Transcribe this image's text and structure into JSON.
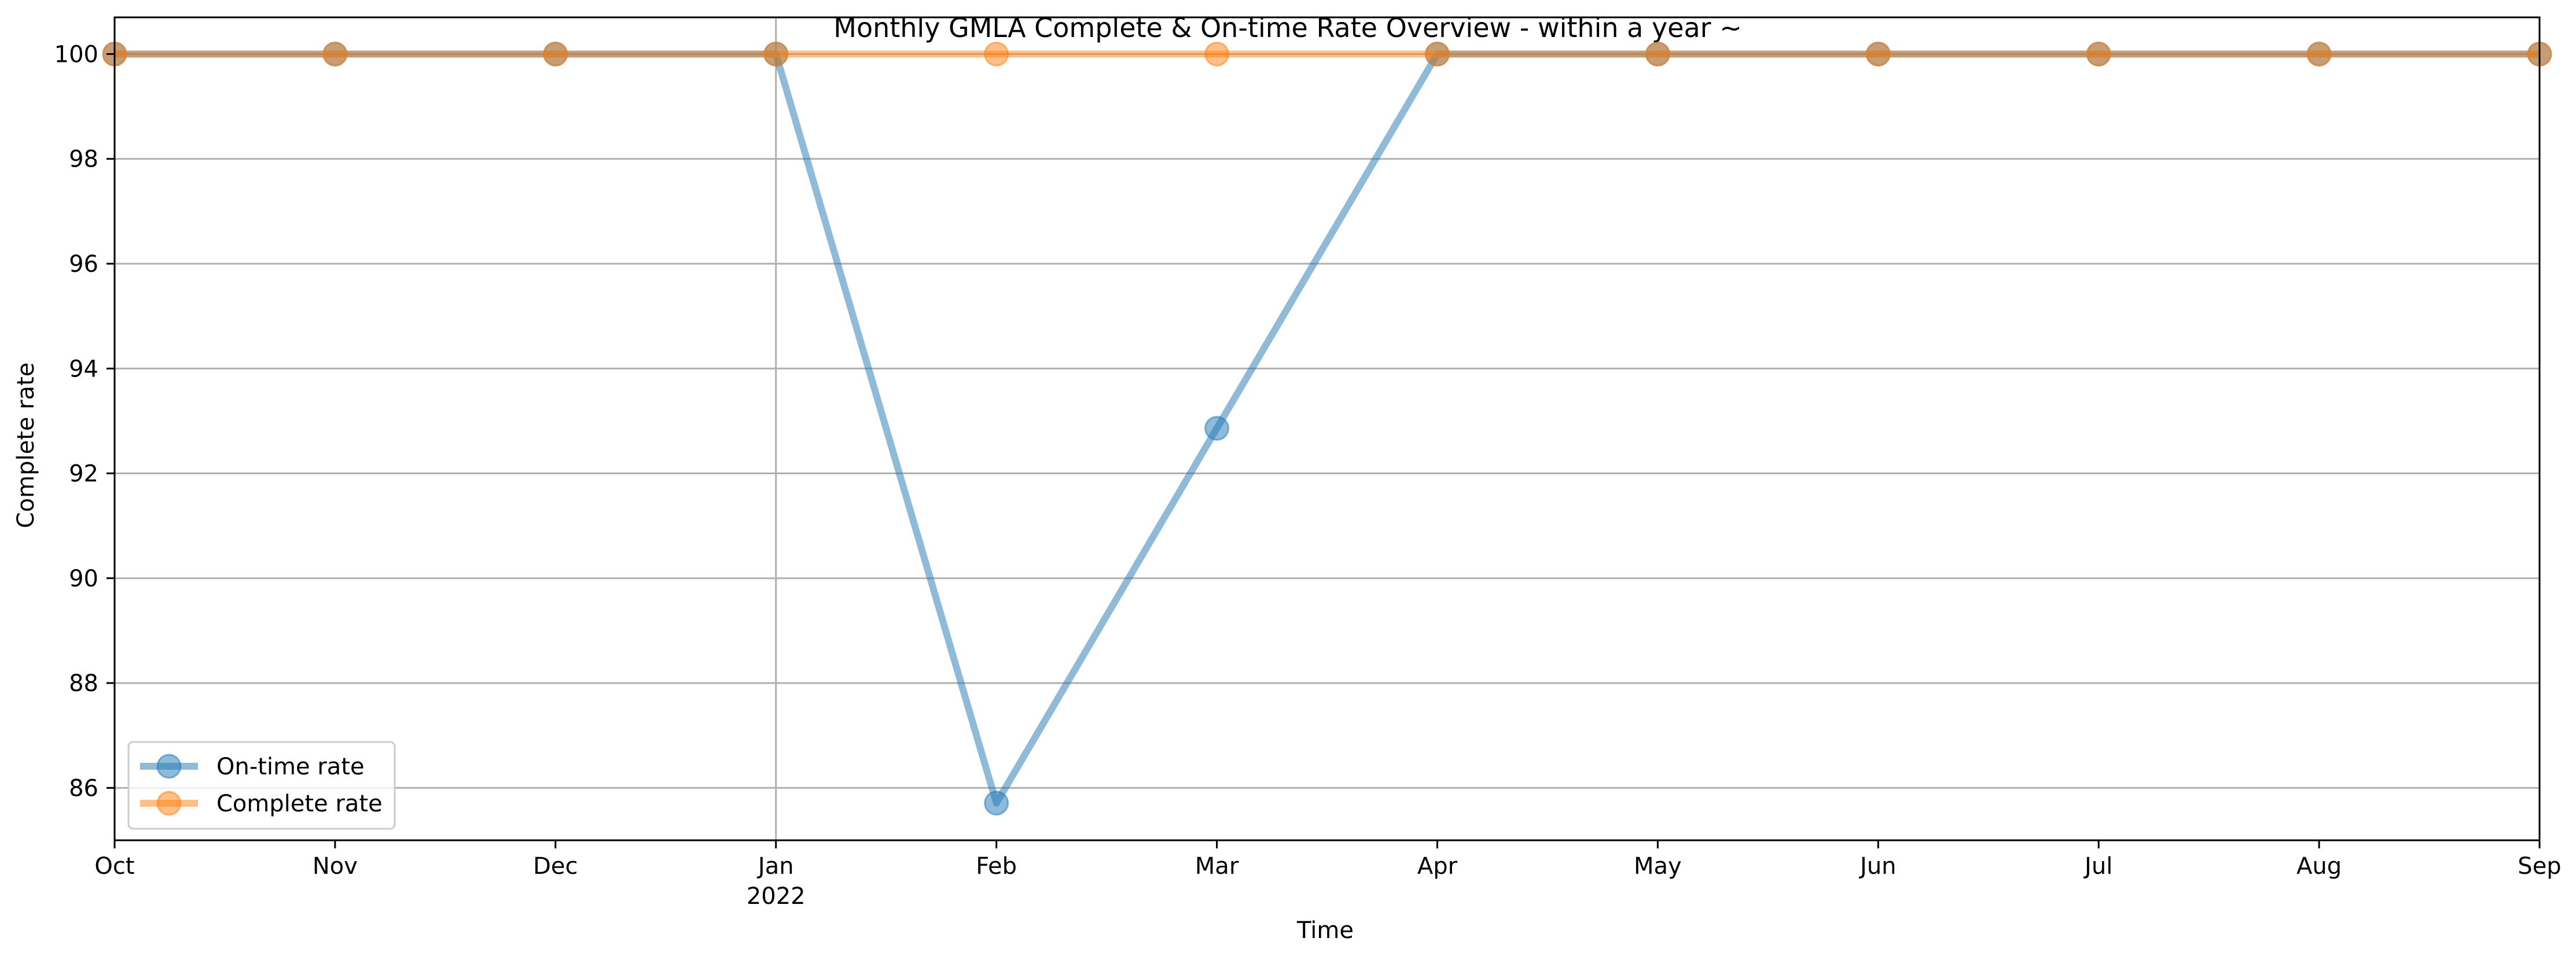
{
  "chart_data": {
    "type": "line",
    "title": "Monthly GMLA Complete & On-time Rate Overview - within a year ~",
    "xlabel": "Time",
    "ylabel": "Complete rate",
    "x": [
      "2021-10",
      "2021-11",
      "2021-12",
      "2022-01",
      "2022-02",
      "2022-03",
      "2022-04",
      "2022-05",
      "2022-06",
      "2022-07",
      "2022-08",
      "2022-09"
    ],
    "x_tick_labels": [
      "Oct",
      "Nov",
      "Dec",
      "Jan",
      "Feb",
      "Mar",
      "Apr",
      "May",
      "Jun",
      "Jul",
      "Aug",
      "Sep"
    ],
    "x_year_label": {
      "at": "2022-01",
      "text": "2022"
    },
    "y_ticks": [
      86,
      88,
      90,
      92,
      94,
      96,
      98,
      100
    ],
    "ylim": [
      85.0,
      100.7
    ],
    "grid": {
      "y": true,
      "x_at": [
        "2022-01"
      ]
    },
    "legend_position": "lower-left",
    "series": [
      {
        "name": "On-time rate",
        "color": "#1f77b4",
        "values": [
          100,
          100,
          100,
          100,
          85.71,
          92.86,
          100,
          100,
          100,
          100,
          100,
          100
        ]
      },
      {
        "name": "Complete rate",
        "color": "#ff7f0e",
        "values": [
          100,
          100,
          100,
          100,
          100,
          100,
          100,
          100,
          100,
          100,
          100,
          100
        ]
      }
    ]
  }
}
